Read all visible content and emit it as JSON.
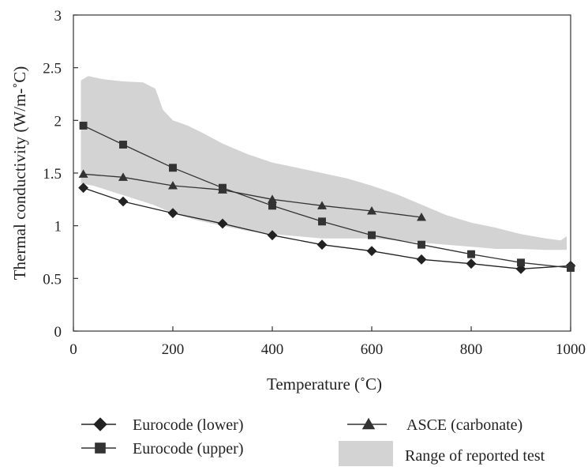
{
  "chart_data": {
    "type": "line",
    "xlabel": "Temperature (˚C)",
    "ylabel": "Thermal conductivity (W/m-˚C)",
    "xlim": [
      0,
      1000
    ],
    "ylim": [
      0,
      3
    ],
    "xticks": [
      0,
      200,
      400,
      600,
      800,
      1000
    ],
    "yticks": [
      0,
      0.5,
      1,
      1.5,
      2,
      2.5,
      3
    ],
    "xtick_labels": [
      "0",
      "200",
      "400",
      "600",
      "800",
      "1000"
    ],
    "ytick_labels": [
      "0",
      "0.5",
      "1",
      "1.5",
      "2",
      "2.5",
      "3"
    ],
    "grid": false,
    "legend_position": "bottom",
    "series": [
      {
        "name": "Eurocode (lower)",
        "marker": "diamond",
        "color": "#222222",
        "x": [
          20,
          100,
          200,
          300,
          400,
          500,
          600,
          700,
          800,
          900,
          1000
        ],
        "y": [
          1.36,
          1.23,
          1.12,
          1.02,
          0.91,
          0.82,
          0.76,
          0.68,
          0.64,
          0.59,
          0.62
        ]
      },
      {
        "name": "Eurocode (upper)",
        "marker": "square",
        "color": "#333333",
        "x": [
          20,
          100,
          200,
          300,
          400,
          500,
          600,
          700,
          800,
          900,
          1000
        ],
        "y": [
          1.95,
          1.77,
          1.55,
          1.36,
          1.19,
          1.04,
          0.91,
          0.82,
          0.73,
          0.65,
          0.6
        ]
      },
      {
        "name": "ASCE (carbonate)",
        "marker": "triangle",
        "color": "#333333",
        "x": [
          20,
          100,
          200,
          300,
          400,
          500,
          600,
          700
        ],
        "y": [
          1.49,
          1.46,
          1.38,
          1.34,
          1.25,
          1.19,
          1.14,
          1.08
        ]
      }
    ],
    "band": {
      "name": "Range of reported test",
      "color": "#d3d3d4",
      "upper": [
        [
          15,
          2.38
        ],
        [
          30,
          2.42
        ],
        [
          60,
          2.39
        ],
        [
          100,
          2.37
        ],
        [
          140,
          2.36
        ],
        [
          165,
          2.3
        ],
        [
          180,
          2.1
        ],
        [
          200,
          2.0
        ],
        [
          230,
          1.95
        ],
        [
          260,
          1.88
        ],
        [
          300,
          1.78
        ],
        [
          350,
          1.68
        ],
        [
          400,
          1.6
        ],
        [
          450,
          1.55
        ],
        [
          500,
          1.5
        ],
        [
          550,
          1.45
        ],
        [
          600,
          1.38
        ],
        [
          650,
          1.3
        ],
        [
          700,
          1.2
        ],
        [
          750,
          1.1
        ],
        [
          800,
          1.03
        ],
        [
          850,
          0.98
        ],
        [
          900,
          0.92
        ],
        [
          950,
          0.88
        ],
        [
          980,
          0.86
        ],
        [
          992,
          0.9
        ]
      ],
      "lower": [
        [
          15,
          1.4
        ],
        [
          40,
          1.38
        ],
        [
          80,
          1.32
        ],
        [
          120,
          1.26
        ],
        [
          160,
          1.2
        ],
        [
          200,
          1.12
        ],
        [
          250,
          1.05
        ],
        [
          300,
          1.0
        ],
        [
          350,
          0.95
        ],
        [
          400,
          0.92
        ],
        [
          450,
          0.9
        ],
        [
          500,
          0.88
        ],
        [
          550,
          0.88
        ],
        [
          600,
          0.88
        ],
        [
          650,
          0.86
        ],
        [
          700,
          0.84
        ],
        [
          750,
          0.82
        ],
        [
          800,
          0.8
        ],
        [
          850,
          0.78
        ],
        [
          900,
          0.78
        ],
        [
          950,
          0.77
        ],
        [
          992,
          0.77
        ]
      ]
    }
  }
}
